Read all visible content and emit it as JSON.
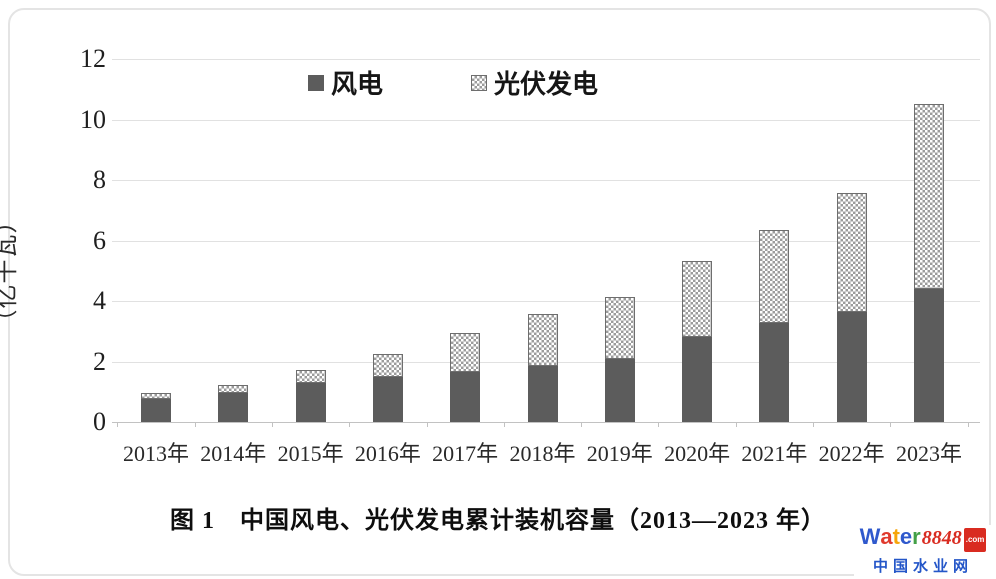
{
  "chart_data": {
    "type": "bar",
    "stacked": true,
    "title": "图 1　中国风电、光伏发电累计装机容量（2013—2023 年）",
    "ylabel": "（亿千瓦）",
    "categories": [
      "2013年",
      "2014年",
      "2015年",
      "2016年",
      "2017年",
      "2018年",
      "2019年",
      "2020年",
      "2021年",
      "2022年",
      "2023年"
    ],
    "series": [
      {
        "name": "风电",
        "color": "#5c5c5c",
        "pattern": "solid",
        "values": [
          0.77,
          0.96,
          1.29,
          1.49,
          1.64,
          1.84,
          2.1,
          2.81,
          3.28,
          3.65,
          4.41
        ]
      },
      {
        "name": "光伏发电",
        "color": "#9c9c9c",
        "pattern": "checker",
        "values": [
          0.19,
          0.25,
          0.43,
          0.77,
          1.3,
          1.74,
          2.04,
          2.53,
          3.06,
          3.93,
          6.09
        ]
      }
    ],
    "totals": [
      0.96,
      1.21,
      1.72,
      2.26,
      2.94,
      3.58,
      4.14,
      5.34,
      6.34,
      7.58,
      10.5
    ],
    "ylim": [
      0,
      12
    ],
    "yticks": [
      0,
      2,
      4,
      6,
      8,
      10,
      12
    ],
    "legend_position": "top-center",
    "grid": true
  },
  "watermark": {
    "brand_letters": [
      {
        "char": "W",
        "color": "#2f59cd"
      },
      {
        "char": "a",
        "color": "#e03a2d"
      },
      {
        "char": "t",
        "color": "#f6a50b"
      },
      {
        "char": "e",
        "color": "#2f59cd"
      },
      {
        "char": "r",
        "color": "#43a047"
      }
    ],
    "brand_number": "8848",
    "brand_number_color": "#d92b20",
    "brand_tld": ".com",
    "brand_tld_bg": "#d92b20",
    "subtitle": "中国水业网",
    "subtitle_color": "#2456c8"
  },
  "colors": {
    "grid": "#e1e1e1",
    "axis": "#c2c2c2",
    "bar_dark": "#5c5c5c",
    "pattern_dot": "#9c9c9c"
  }
}
